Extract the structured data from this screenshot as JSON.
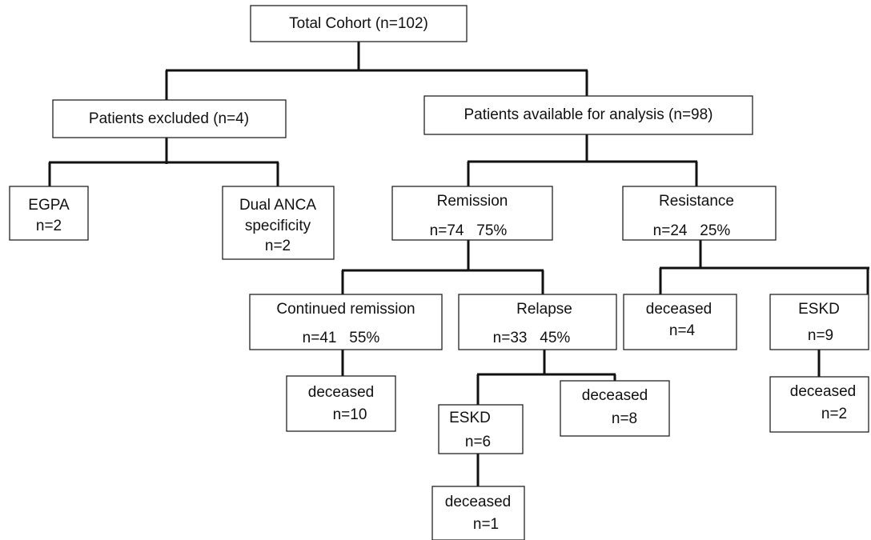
{
  "nodes": [
    {
      "lines": [
        "Total Cohort (n=102)"
      ]
    },
    {
      "lines": [
        "Patients excluded (n=4)"
      ]
    },
    {
      "lines": [
        "Patients available for analysis (n=98)"
      ]
    },
    {
      "lines": [
        "EGPA",
        "n=2"
      ]
    },
    {
      "lines": [
        "Dual ANCA",
        "specificity",
        "n=2"
      ]
    },
    {
      "lines": [
        "Remission",
        "n=74   75%"
      ]
    },
    {
      "lines": [
        "Resistance",
        "n=24   25%"
      ]
    },
    {
      "lines": [
        "Continued remission",
        "n=41   55%"
      ]
    },
    {
      "lines": [
        "Relapse",
        "n=33   45%"
      ]
    },
    {
      "lines": [
        "deceased",
        "n=4"
      ]
    },
    {
      "lines": [
        "ESKD",
        "n=9"
      ]
    },
    {
      "lines": [
        "deceased",
        "n=10"
      ]
    },
    {
      "lines": [
        "ESKD",
        "n=6"
      ]
    },
    {
      "lines": [
        "deceased",
        "n=8"
      ]
    },
    {
      "lines": [
        "deceased",
        "n=2"
      ]
    },
    {
      "lines": [
        "deceased",
        "n=1"
      ]
    }
  ]
}
